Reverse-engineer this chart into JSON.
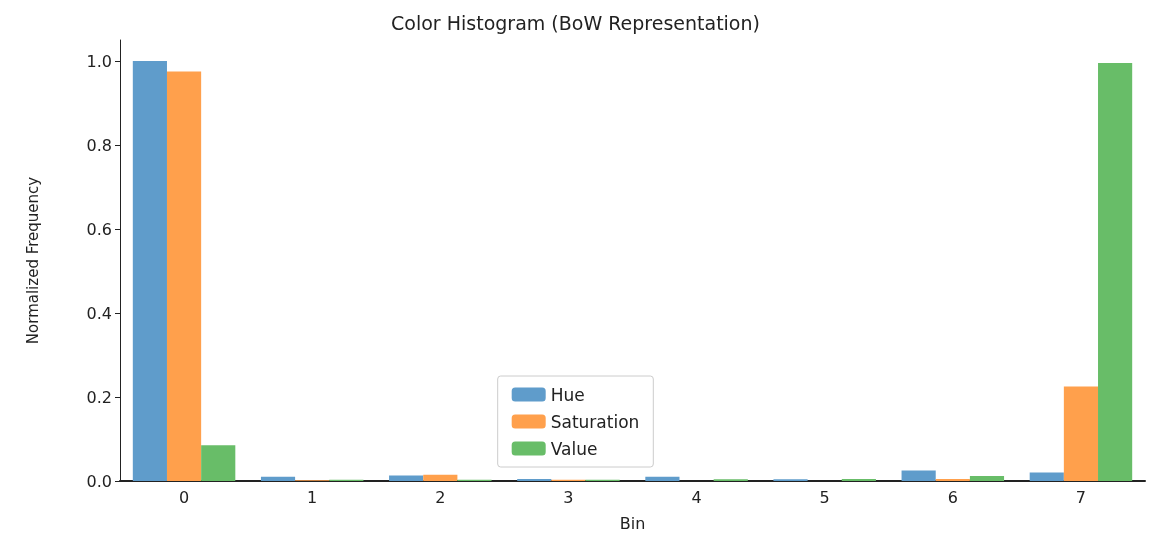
{
  "chart_data": {
    "type": "bar",
    "title": "Color Histogram (BoW Representation)",
    "xlabel": "Bin",
    "ylabel": "Normalized Frequency",
    "categories": [
      "0",
      "1",
      "2",
      "3",
      "4",
      "5",
      "6",
      "7"
    ],
    "series": [
      {
        "name": "Hue",
        "color": "#5f9ccb",
        "values": [
          1.0,
          0.01,
          0.013,
          0.005,
          0.01,
          0.004,
          0.025,
          0.02
        ]
      },
      {
        "name": "Saturation",
        "color": "#ffa04c",
        "values": [
          0.975,
          0.002,
          0.015,
          0.003,
          null,
          0.0,
          0.005,
          0.225
        ]
      },
      {
        "name": "Value",
        "color": "#68bd68",
        "values": [
          0.085,
          0.003,
          0.003,
          0.003,
          0.004,
          0.005,
          0.012,
          0.995
        ]
      }
    ],
    "ylim": [
      0,
      1.05
    ],
    "yticks": [
      {
        "value": 0,
        "label": "0.0"
      },
      0.2,
      0.4,
      0.6,
      0.8,
      {
        "value": 1,
        "label": "1.0"
      }
    ],
    "grid": false,
    "legend": "bottom"
  }
}
